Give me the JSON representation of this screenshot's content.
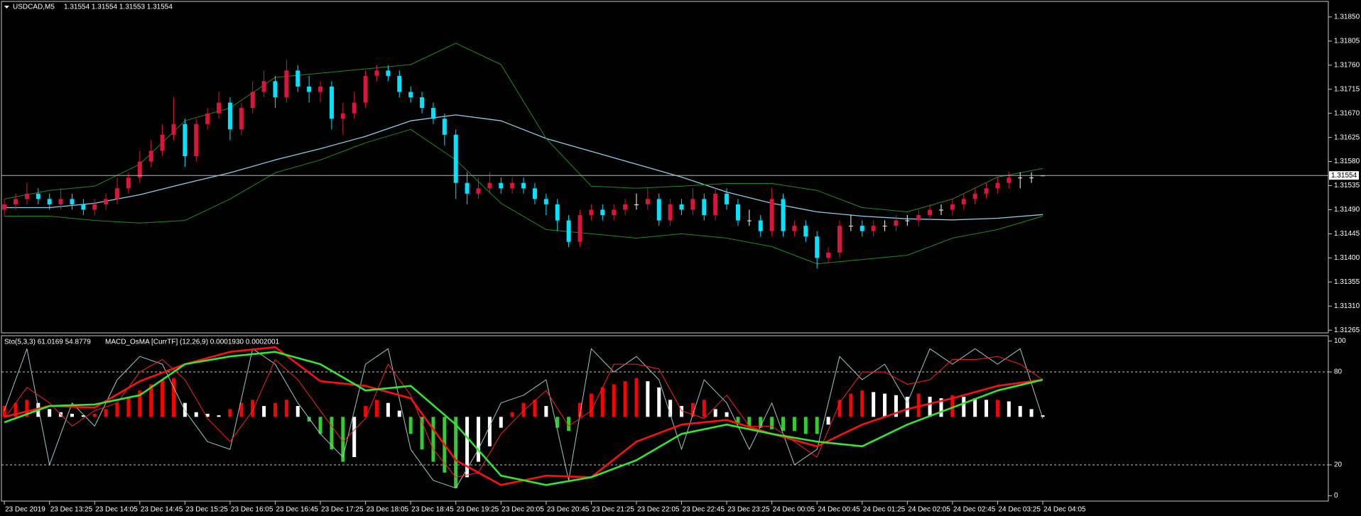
{
  "chart_data": [
    {
      "type": "candlestick",
      "title": "USDCAD,M5",
      "subtitle": "1.31554 1.31554 1.31553 1.31554",
      "xlim": [
        -0.26,
        117.3
      ],
      "ylim": [
        1.3126,
        1.31879
      ],
      "yticks": [
        {
          "value": 1.3185,
          "label": "1.31850"
        },
        {
          "value": 1.31805,
          "label": "1.31805"
        },
        {
          "value": 1.3176,
          "label": "1.31760"
        },
        {
          "value": 1.31715,
          "label": "1.31715"
        },
        {
          "value": 1.3167,
          "label": "1.31670"
        },
        {
          "value": 1.31625,
          "label": "1.31625"
        },
        {
          "value": 1.3158,
          "label": "1.31580"
        },
        {
          "value": 1.31535,
          "label": "1.31535"
        },
        {
          "value": 1.3149,
          "label": "1.31490"
        },
        {
          "value": 1.31445,
          "label": "1.31445"
        },
        {
          "value": 1.314,
          "label": "1.31400"
        },
        {
          "value": 1.31355,
          "label": "1.31355"
        },
        {
          "value": 1.3131,
          "label": "1.31310"
        },
        {
          "value": 1.31265,
          "label": "1.31265"
        }
      ],
      "last_price": {
        "value": 1.31554,
        "label": "1.31554"
      },
      "up_color": "#dc143c",
      "down_color": "#00e5ff",
      "doji_color": "#ffffff",
      "open": [
        1.3149,
        1.315,
        1.3151,
        1.3152,
        1.3151,
        1.315,
        1.3151,
        1.315,
        1.3149,
        1.315,
        1.3151,
        1.3153,
        1.3155,
        1.3158,
        1.316,
        1.3163,
        1.3165,
        1.3159,
        1.3165,
        1.3167,
        1.3169,
        1.3164,
        1.3168,
        1.3171,
        1.3173,
        1.317,
        1.3175,
        1.3172,
        1.3171,
        1.3172,
        1.3166,
        1.3167,
        1.3169,
        1.3174,
        1.3175,
        1.3174,
        1.3171,
        1.317,
        1.3168,
        1.3166,
        1.3163,
        1.3154,
        1.3152,
        1.3153,
        1.3154,
        1.3153,
        1.3154,
        1.3153,
        1.3151,
        1.315,
        1.3147,
        1.3143,
        1.3148,
        1.3149,
        1.3148,
        1.3149,
        1.315,
        1.315,
        1.3151,
        1.3147,
        1.315,
        1.3149,
        1.3151,
        1.3148,
        1.3152,
        1.315,
        1.3147,
        1.3147,
        1.3145,
        1.3151,
        1.3145,
        1.3146,
        1.3144,
        1.314,
        1.3141,
        1.3146,
        1.3146,
        1.3145,
        1.3146,
        1.3146,
        1.3147,
        1.3147,
        1.3148,
        1.3149,
        1.3149,
        1.315,
        1.3151,
        1.3152,
        1.3153,
        1.3154,
        1.3155,
        1.3155,
        1.31554
      ],
      "high": [
        1.3151,
        1.3152,
        1.3154,
        1.3153,
        1.3152,
        1.3153,
        1.3152,
        1.3151,
        1.3151,
        1.3152,
        1.3155,
        1.3156,
        1.316,
        1.3162,
        1.3165,
        1.317,
        1.3166,
        1.3166,
        1.3168,
        1.3171,
        1.317,
        1.3169,
        1.3173,
        1.3175,
        1.3174,
        1.3177,
        1.3176,
        1.3174,
        1.3173,
        1.3173,
        1.3169,
        1.3171,
        1.3175,
        1.3176,
        1.3176,
        1.3175,
        1.3172,
        1.3171,
        1.3169,
        1.3167,
        1.3164,
        1.3156,
        1.3155,
        1.3156,
        1.3155,
        1.3155,
        1.3155,
        1.3154,
        1.3152,
        1.3151,
        1.3148,
        1.3149,
        1.315,
        1.315,
        1.315,
        1.3151,
        1.3152,
        1.3153,
        1.3152,
        1.3151,
        1.3151,
        1.3153,
        1.3152,
        1.3153,
        1.3153,
        1.3151,
        1.3149,
        1.3148,
        1.3153,
        1.3152,
        1.3147,
        1.3147,
        1.3145,
        1.3142,
        1.3147,
        1.3148,
        1.3147,
        1.3147,
        1.3147,
        1.3148,
        1.3148,
        1.3149,
        1.315,
        1.315,
        1.3151,
        1.3152,
        1.3153,
        1.3154,
        1.3155,
        1.3156,
        1.3156,
        1.3156,
        1.31554
      ],
      "low": [
        1.3148,
        1.3149,
        1.315,
        1.315,
        1.3149,
        1.3149,
        1.3149,
        1.3148,
        1.3148,
        1.3149,
        1.315,
        1.3152,
        1.3154,
        1.3157,
        1.3159,
        1.3162,
        1.3157,
        1.3158,
        1.3164,
        1.3166,
        1.3162,
        1.3163,
        1.3167,
        1.317,
        1.3168,
        1.3169,
        1.3171,
        1.3169,
        1.3169,
        1.3164,
        1.3163,
        1.3166,
        1.3168,
        1.3173,
        1.3173,
        1.317,
        1.3169,
        1.3167,
        1.3165,
        1.3161,
        1.3151,
        1.315,
        1.3151,
        1.3152,
        1.3152,
        1.3152,
        1.3152,
        1.315,
        1.3148,
        1.3145,
        1.3142,
        1.3142,
        1.3147,
        1.3147,
        1.3147,
        1.3148,
        1.3149,
        1.3149,
        1.3146,
        1.3146,
        1.3148,
        1.3148,
        1.3147,
        1.3147,
        1.3149,
        1.3146,
        1.3146,
        1.3144,
        1.3144,
        1.3144,
        1.3144,
        1.3143,
        1.3138,
        1.3139,
        1.314,
        1.3145,
        1.3144,
        1.3144,
        1.3145,
        1.3145,
        1.3146,
        1.3146,
        1.3147,
        1.3148,
        1.3148,
        1.3149,
        1.315,
        1.3151,
        1.3152,
        1.3153,
        1.3153,
        1.3154,
        1.31553
      ],
      "close": [
        1.315,
        1.3151,
        1.3152,
        1.3151,
        1.315,
        1.3151,
        1.315,
        1.3149,
        1.315,
        1.3151,
        1.3153,
        1.3155,
        1.3158,
        1.316,
        1.3163,
        1.3165,
        1.3159,
        1.3165,
        1.3167,
        1.3169,
        1.3164,
        1.3168,
        1.3171,
        1.3173,
        1.317,
        1.3175,
        1.3172,
        1.3171,
        1.3172,
        1.3166,
        1.3167,
        1.3169,
        1.3174,
        1.3175,
        1.3174,
        1.3171,
        1.317,
        1.3168,
        1.3166,
        1.3163,
        1.3154,
        1.3152,
        1.3153,
        1.3154,
        1.3153,
        1.3154,
        1.3153,
        1.3151,
        1.315,
        1.3147,
        1.3143,
        1.3148,
        1.3149,
        1.3148,
        1.3149,
        1.315,
        1.315,
        1.3151,
        1.3147,
        1.315,
        1.3149,
        1.3151,
        1.3148,
        1.3152,
        1.315,
        1.3147,
        1.3147,
        1.3145,
        1.3151,
        1.3145,
        1.3146,
        1.3144,
        1.314,
        1.3141,
        1.3146,
        1.3146,
        1.3145,
        1.3146,
        1.3146,
        1.3147,
        1.3147,
        1.3148,
        1.3149,
        1.3149,
        1.315,
        1.3151,
        1.3152,
        1.3153,
        1.3154,
        1.3155,
        1.3155,
        1.3155,
        1.31554
      ],
      "series": [
        {
          "color": "#87ceeb",
          "width": 1.3,
          "x": [
            0,
            4,
            8,
            12,
            16,
            20,
            24,
            28,
            32,
            36,
            40,
            44,
            48,
            52,
            56,
            60,
            64,
            68,
            72,
            76,
            80,
            84,
            88,
            92
          ],
          "values": [
            1.31494,
            1.31494,
            1.31502,
            1.31518,
            1.31539,
            1.31559,
            1.31583,
            1.31604,
            1.31627,
            1.31656,
            1.31667,
            1.31656,
            1.31623,
            1.31599,
            1.31575,
            1.31551,
            1.31523,
            1.31502,
            1.31486,
            1.31478,
            1.31473,
            1.31471,
            1.31474,
            1.31481
          ]
        },
        {
          "color": "#228b22",
          "width": 1,
          "x": [
            0,
            4,
            8,
            12,
            16,
            20,
            24,
            28,
            32,
            36,
            40,
            44,
            48,
            52,
            56,
            60,
            64,
            68,
            72,
            76,
            80,
            84,
            88,
            92
          ],
          "values": [
            1.3151,
            1.31526,
            1.31534,
            1.31575,
            1.31656,
            1.3168,
            1.31737,
            1.31745,
            1.31753,
            1.31761,
            1.31801,
            1.31761,
            1.31623,
            1.31534,
            1.3153,
            1.31534,
            1.31539,
            1.31539,
            1.31526,
            1.31494,
            1.31486,
            1.3151,
            1.31551,
            1.31567
          ]
        },
        {
          "color": "#228b22",
          "width": 1,
          "x": [
            0,
            4,
            8,
            12,
            16,
            20,
            24,
            28,
            32,
            36,
            40,
            44,
            48,
            52,
            56,
            60,
            64,
            68,
            72,
            76,
            80,
            84,
            88,
            92
          ],
          "values": [
            1.31478,
            1.31478,
            1.3147,
            1.31465,
            1.3147,
            1.3151,
            1.31559,
            1.31583,
            1.31615,
            1.3164,
            1.31583,
            1.31502,
            1.31453,
            1.31445,
            1.31437,
            1.31445,
            1.31437,
            1.31421,
            1.31389,
            1.31397,
            1.31405,
            1.31437,
            1.31453,
            1.31478
          ]
        }
      ]
    },
    {
      "type": "oscillator",
      "title": "Sto(5,3,3) 61.0169 54.8779",
      "subtitle": "MACD_OsMA [CurrTF] (12,26,9) 0.0001930 0.0002001",
      "xlim": [
        -0.26,
        117.3
      ],
      "ylim": [
        -3.4,
        103.4
      ],
      "yticks": [
        0,
        20,
        80,
        100
      ],
      "levels": [
        20,
        80
      ],
      "xticks": [
        {
          "value": 0,
          "label": "23 Dec 2019"
        },
        {
          "value": 4,
          "label": "23 Dec 13:25"
        },
        {
          "value": 8,
          "label": "23 Dec 14:05"
        },
        {
          "value": 12,
          "label": "23 Dec 14:45"
        },
        {
          "value": 16,
          "label": "23 Dec 15:25"
        },
        {
          "value": 20,
          "label": "23 Dec 16:05"
        },
        {
          "value": 24,
          "label": "23 Dec 16:45"
        },
        {
          "value": 28,
          "label": "23 Dec 17:25"
        },
        {
          "value": 32,
          "label": "23 Dec 18:05"
        },
        {
          "value": 36,
          "label": "23 Dec 18:45"
        },
        {
          "value": 40,
          "label": "23 Dec 19:25"
        },
        {
          "value": 44,
          "label": "23 Dec 20:05"
        },
        {
          "value": 48,
          "label": "23 Dec 20:45"
        },
        {
          "value": 52,
          "label": "23 Dec 21:25"
        },
        {
          "value": 56,
          "label": "23 Dec 22:05"
        },
        {
          "value": 60,
          "label": "23 Dec 22:45"
        },
        {
          "value": 64,
          "label": "23 Dec 23:25"
        },
        {
          "value": 68,
          "label": "24 Dec 00:05"
        },
        {
          "value": 72,
          "label": "24 Dec 00:45"
        },
        {
          "value": 76,
          "label": "24 Dec 01:25"
        },
        {
          "value": 80,
          "label": "24 Dec 02:05"
        },
        {
          "value": 84,
          "label": "24 Dec 02:45"
        },
        {
          "value": 88,
          "label": "24 Dec 03:25"
        },
        {
          "value": 92,
          "label": "24 Dec 04:05"
        }
      ],
      "histogram": {
        "baseline": 51,
        "up_color": "#ff0000",
        "down_color": "#32cd32",
        "fade_color": "#ffffff",
        "values": [
          58,
          60,
          62,
          60,
          56,
          54,
          53,
          52,
          53,
          56,
          60,
          64,
          68,
          72,
          75,
          76,
          60,
          54,
          53,
          52,
          56,
          60,
          62,
          58,
          60,
          62,
          58,
          48,
          40,
          30,
          22,
          25,
          58,
          62,
          60,
          55,
          40,
          30,
          22,
          15,
          5,
          12,
          22,
          32,
          44,
          54,
          60,
          62,
          58,
          44,
          42,
          60,
          66,
          70,
          72,
          74,
          76,
          74,
          70,
          62,
          58,
          60,
          62,
          56,
          54,
          46,
          44,
          44,
          43,
          42,
          42,
          40,
          40,
          46,
          62,
          66,
          68,
          67,
          66,
          65,
          64,
          66,
          64,
          63,
          65,
          64,
          63,
          62,
          62,
          61,
          58,
          56,
          52
        ]
      },
      "series": [
        {
          "color": "#9ec8c8",
          "width": 1,
          "x": [
            0,
            2,
            4,
            6,
            8,
            10,
            12,
            14,
            16,
            18,
            20,
            22,
            24,
            26,
            28,
            30,
            32,
            34,
            36,
            38,
            40,
            42,
            44,
            46,
            48,
            50,
            52,
            54,
            56,
            58,
            60,
            62,
            64,
            66,
            68,
            70,
            72,
            74,
            76,
            78,
            80,
            82,
            84,
            86,
            88,
            90,
            92
          ],
          "values": [
            55,
            95,
            20,
            60,
            45,
            75,
            90,
            85,
            55,
            35,
            30,
            95,
            85,
            60,
            40,
            25,
            85,
            95,
            30,
            10,
            5,
            30,
            60,
            65,
            75,
            10,
            95,
            80,
            90,
            75,
            30,
            75,
            60,
            30,
            60,
            20,
            30,
            90,
            75,
            85,
            60,
            95,
            85,
            95,
            85,
            95,
            50
          ]
        },
        {
          "color": "#ff2020",
          "width": 1,
          "x": [
            0,
            2,
            4,
            6,
            8,
            10,
            12,
            14,
            16,
            18,
            20,
            22,
            24,
            26,
            28,
            30,
            32,
            34,
            36,
            38,
            40,
            42,
            44,
            46,
            48,
            50,
            52,
            54,
            56,
            58,
            60,
            62,
            64,
            66,
            68,
            70,
            72,
            74,
            76,
            78,
            80,
            82,
            84,
            86,
            88,
            90,
            92
          ],
          "values": [
            50,
            70,
            60,
            45,
            55,
            60,
            80,
            88,
            75,
            50,
            35,
            55,
            88,
            75,
            55,
            35,
            50,
            85,
            65,
            30,
            12,
            15,
            40,
            55,
            68,
            45,
            55,
            85,
            85,
            82,
            55,
            50,
            65,
            45,
            45,
            35,
            25,
            60,
            80,
            80,
            72,
            75,
            88,
            88,
            90,
            85,
            75
          ]
        },
        {
          "color": "#ff1010",
          "width": 2.6,
          "x": [
            0,
            4,
            8,
            12,
            16,
            20,
            24,
            28,
            32,
            36,
            40,
            44,
            48,
            52,
            56,
            60,
            64,
            68,
            72,
            76,
            80,
            84,
            88,
            92
          ],
          "values": [
            51,
            58,
            57,
            74,
            85,
            93,
            96,
            74,
            71,
            63,
            23,
            7,
            13,
            12,
            35,
            46,
            49,
            40,
            32,
            46,
            56,
            63,
            71,
            75
          ]
        },
        {
          "color": "#32e632",
          "width": 2.6,
          "x": [
            0,
            4,
            8,
            12,
            16,
            20,
            24,
            28,
            32,
            36,
            40,
            44,
            48,
            52,
            56,
            60,
            64,
            68,
            72,
            76,
            80,
            84,
            88,
            92
          ],
          "values": [
            47.5,
            58,
            59,
            65,
            85,
            90,
            93,
            85,
            68,
            71,
            46,
            13,
            7,
            12,
            23,
            40,
            46,
            40,
            35,
            32,
            46,
            57,
            68,
            75
          ]
        }
      ]
    }
  ]
}
